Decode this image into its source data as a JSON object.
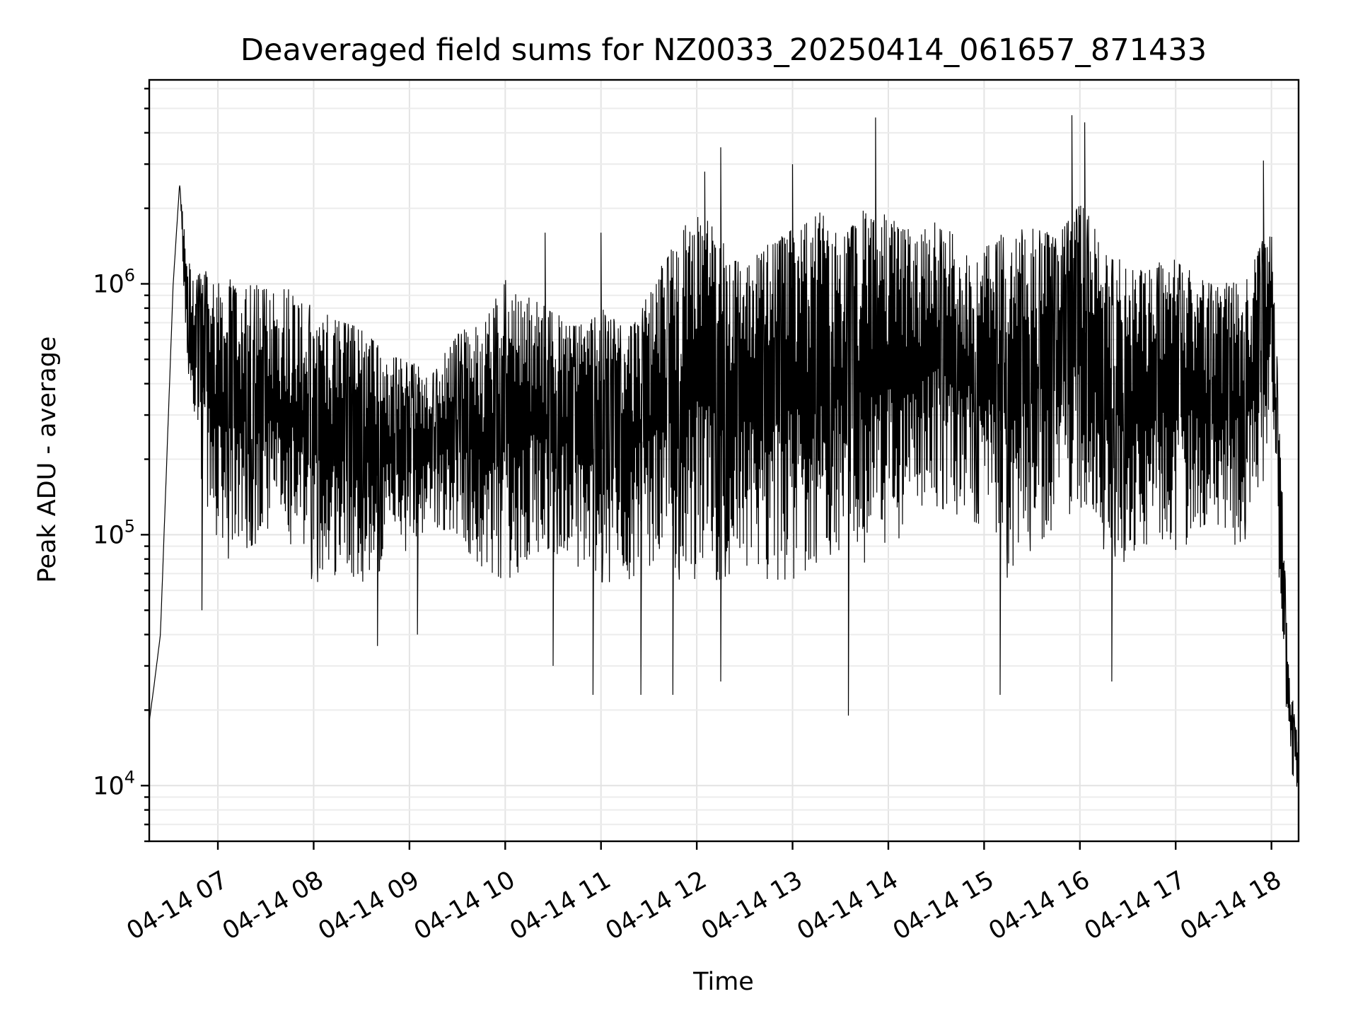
{
  "chart_data": {
    "type": "line",
    "title": "Deaveraged field sums for NZ0033_20250414_061657_871433",
    "xlabel": "Time",
    "ylabel": "Peak ADU - average",
    "yscale": "log",
    "ylim": [
      6000,
      6500000
    ],
    "xlim": [
      "2025-04-14 06:17",
      "2025-04-14 18:17"
    ],
    "grid": true,
    "x_ticks": [
      {
        "value": "2025-04-14 07:00",
        "label": "04-14 07"
      },
      {
        "value": "2025-04-14 08:00",
        "label": "04-14 08"
      },
      {
        "value": "2025-04-14 09:00",
        "label": "04-14 09"
      },
      {
        "value": "2025-04-14 10:00",
        "label": "04-14 10"
      },
      {
        "value": "2025-04-14 11:00",
        "label": "04-14 11"
      },
      {
        "value": "2025-04-14 12:00",
        "label": "04-14 12"
      },
      {
        "value": "2025-04-14 13:00",
        "label": "04-14 13"
      },
      {
        "value": "2025-04-14 14:00",
        "label": "04-14 14"
      },
      {
        "value": "2025-04-14 15:00",
        "label": "04-14 15"
      },
      {
        "value": "2025-04-14 16:00",
        "label": "04-14 16"
      },
      {
        "value": "2025-04-14 17:00",
        "label": "04-14 17"
      },
      {
        "value": "2025-04-14 18:00",
        "label": "04-14 18"
      }
    ],
    "y_ticks": [
      {
        "value": 10000,
        "base": "10",
        "exp": "4"
      },
      {
        "value": 100000,
        "base": "10",
        "exp": "5"
      },
      {
        "value": 1000000,
        "base": "10",
        "exp": "6"
      }
    ],
    "series": [
      {
        "color": "#000000",
        "x": [
          "2025-04-14 06:17",
          "2025-04-14 06:20",
          "2025-04-14 06:24",
          "2025-04-14 06:28",
          "2025-04-14 06:32",
          "2025-04-14 06:36",
          "2025-04-14 06:40",
          "2025-04-14 06:45",
          "2025-04-14 06:50",
          "2025-04-14 07:00",
          "2025-04-14 07:15",
          "2025-04-14 07:30",
          "2025-04-14 07:45",
          "2025-04-14 08:00",
          "2025-04-14 08:15",
          "2025-04-14 08:30",
          "2025-04-14 08:45",
          "2025-04-14 09:00",
          "2025-04-14 09:15",
          "2025-04-14 09:30",
          "2025-04-14 09:45",
          "2025-04-14 10:00",
          "2025-04-14 10:15",
          "2025-04-14 10:30",
          "2025-04-14 10:45",
          "2025-04-14 11:00",
          "2025-04-14 11:15",
          "2025-04-14 11:30",
          "2025-04-14 11:45",
          "2025-04-14 12:00",
          "2025-04-14 12:15",
          "2025-04-14 12:30",
          "2025-04-14 12:45",
          "2025-04-14 13:00",
          "2025-04-14 13:15",
          "2025-04-14 13:30",
          "2025-04-14 13:45",
          "2025-04-14 14:00",
          "2025-04-14 14:15",
          "2025-04-14 14:30",
          "2025-04-14 14:45",
          "2025-04-14 15:00",
          "2025-04-14 15:15",
          "2025-04-14 15:30",
          "2025-04-14 15:45",
          "2025-04-14 16:00",
          "2025-04-14 16:15",
          "2025-04-14 16:30",
          "2025-04-14 16:45",
          "2025-04-14 17:00",
          "2025-04-14 17:15",
          "2025-04-14 17:30",
          "2025-04-14 17:45",
          "2025-04-14 17:55",
          "2025-04-14 18:00",
          "2025-04-14 18:05",
          "2025-04-14 18:10",
          "2025-04-14 18:14",
          "2025-04-14 18:17"
        ],
        "upper": [
          18000,
          25000,
          40000,
          200000,
          1000000,
          2500000,
          1500000,
          1000000,
          1200000,
          1100000,
          1000000,
          1000000,
          1000000,
          800000,
          750000,
          700000,
          550000,
          500000,
          450000,
          650000,
          700000,
          1100000,
          900000,
          800000,
          700000,
          800000,
          700000,
          900000,
          1500000,
          2000000,
          1600000,
          1200000,
          1500000,
          1700000,
          2000000,
          1600000,
          2000000,
          2000000,
          1600000,
          1800000,
          1500000,
          1400000,
          1700000,
          1800000,
          1600000,
          2200000,
          1400000,
          1200000,
          1200000,
          1300000,
          1100000,
          1000000,
          1100000,
          1600000,
          1800000,
          300000,
          40000,
          20000,
          15000
        ],
        "lower": [
          18000,
          25000,
          40000,
          200000,
          1000000,
          2500000,
          500000,
          300000,
          150000,
          70000,
          80000,
          90000,
          80000,
          60000,
          60000,
          60000,
          70000,
          80000,
          100000,
          90000,
          70000,
          60000,
          70000,
          80000,
          70000,
          60000,
          60000,
          70000,
          60000,
          60000,
          60000,
          70000,
          60000,
          60000,
          70000,
          80000,
          70000,
          80000,
          100000,
          120000,
          110000,
          100000,
          60000,
          80000,
          100000,
          120000,
          80000,
          70000,
          80000,
          80000,
          90000,
          80000,
          90000,
          120000,
          400000,
          60000,
          15000,
          9000,
          10000
        ],
        "spikes": [
          {
            "x": "2025-04-14 06:50",
            "y": 50000
          },
          {
            "x": "2025-04-14 08:40",
            "y": 36000
          },
          {
            "x": "2025-04-14 09:05",
            "y": 40000
          },
          {
            "x": "2025-04-14 10:25",
            "y": 1600000
          },
          {
            "x": "2025-04-14 10:30",
            "y": 30000
          },
          {
            "x": "2025-04-14 11:00",
            "y": 1600000
          },
          {
            "x": "2025-04-14 10:55",
            "y": 23000
          },
          {
            "x": "2025-04-14 11:25",
            "y": 23000
          },
          {
            "x": "2025-04-14 11:45",
            "y": 23000
          },
          {
            "x": "2025-04-14 12:05",
            "y": 2800000
          },
          {
            "x": "2025-04-14 12:15",
            "y": 26000
          },
          {
            "x": "2025-04-14 12:15",
            "y": 3500000
          },
          {
            "x": "2025-04-14 13:00",
            "y": 3000000
          },
          {
            "x": "2025-04-14 13:35",
            "y": 19000
          },
          {
            "x": "2025-04-14 13:52",
            "y": 4600000
          },
          {
            "x": "2025-04-14 15:10",
            "y": 23000
          },
          {
            "x": "2025-04-14 15:55",
            "y": 4700000
          },
          {
            "x": "2025-04-14 16:03",
            "y": 4400000
          },
          {
            "x": "2025-04-14 16:20",
            "y": 26000
          },
          {
            "x": "2025-04-14 17:55",
            "y": 3100000
          }
        ]
      }
    ]
  }
}
